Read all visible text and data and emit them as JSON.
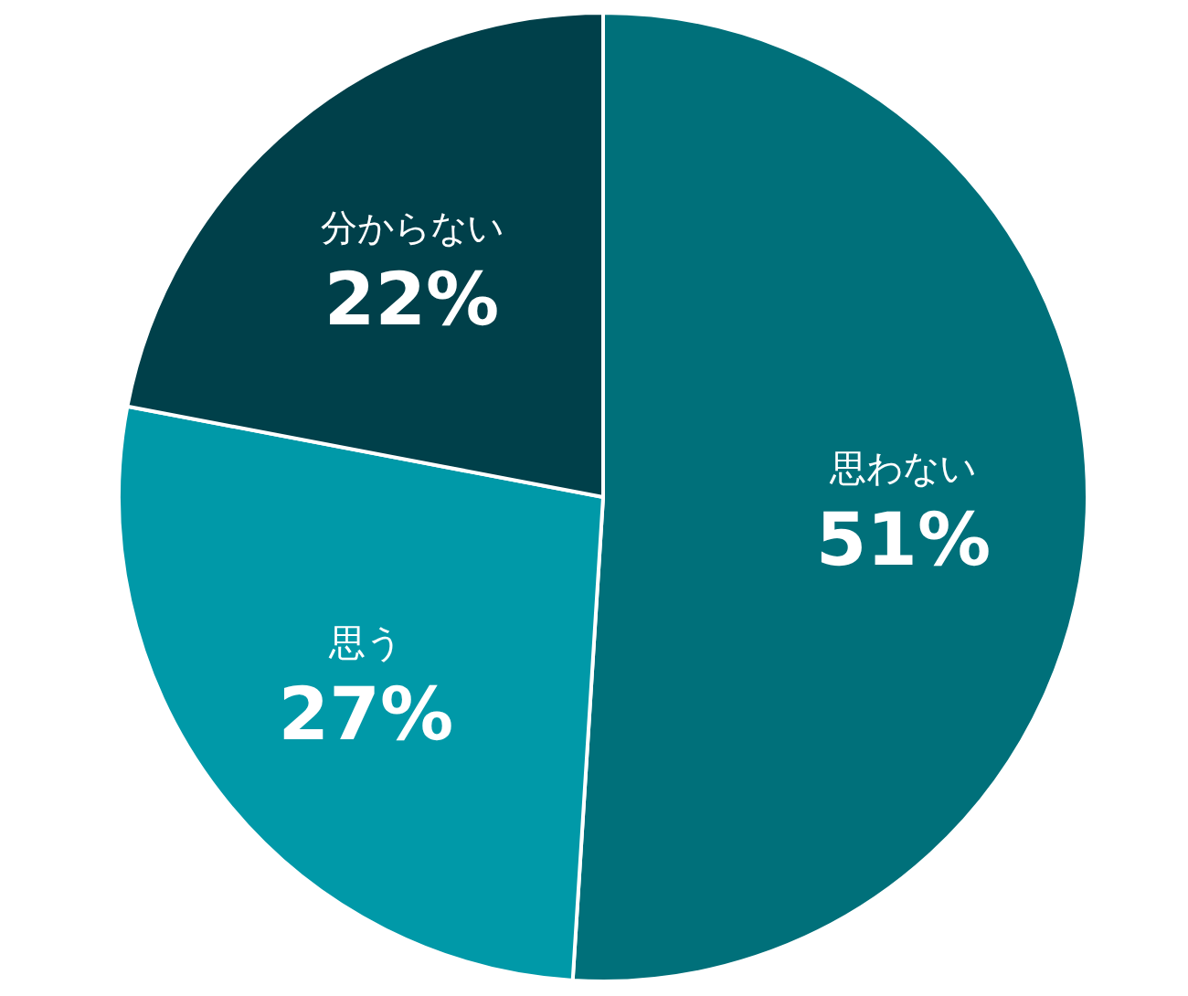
{
  "chart_data": {
    "type": "pie",
    "categories": [
      "思わない",
      "思う",
      "分からない"
    ],
    "values": [
      51,
      27,
      22
    ],
    "value_labels": [
      "51%",
      "27%",
      "22%"
    ],
    "colors": [
      "#00707a",
      "#0099a8",
      "#00404a"
    ]
  }
}
